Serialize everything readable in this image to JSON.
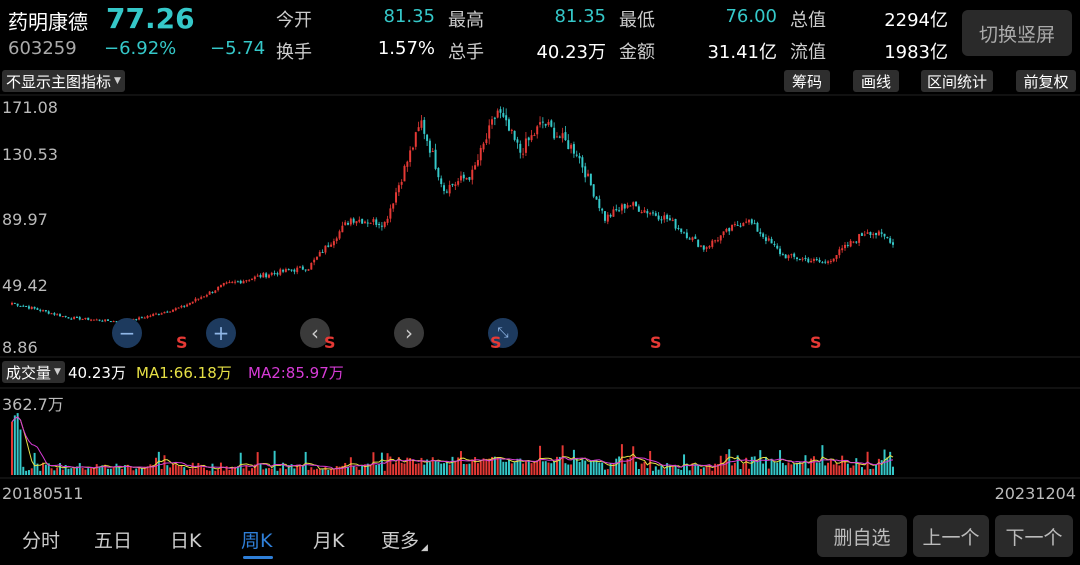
{
  "stock": {
    "name": "药明康德",
    "price": "77.26",
    "code": "603259",
    "change_pct": "−6.92%",
    "change": "−5.74"
  },
  "colors": {
    "up": "#e53935",
    "down": "#35c8c9",
    "ma1": "#e6e045",
    "ma2": "#d63bd6",
    "accent": "#2f7fd8"
  },
  "quote": [
    {
      "label": "今开",
      "value": "81.35",
      "tone": "up"
    },
    {
      "label": "最高",
      "value": "81.35",
      "tone": "up"
    },
    {
      "label": "最低",
      "value": "76.00",
      "tone": "up"
    },
    {
      "label": "总值",
      "value": "2294亿",
      "tone": "plain"
    },
    {
      "label": "换手",
      "value": "1.57%",
      "tone": "plain"
    },
    {
      "label": "总手",
      "value": "40.23万",
      "tone": "plain"
    },
    {
      "label": "金额",
      "value": "31.41亿",
      "tone": "plain"
    },
    {
      "label": "流值",
      "value": "1983亿",
      "tone": "plain"
    }
  ],
  "switch_label": "切换竖屏",
  "indicator_select": "不显示主图指标",
  "tools": [
    "筹码",
    "画线",
    "区间统计",
    "前复权"
  ],
  "price_axis": [
    "171.08",
    "130.53",
    "89.97",
    "49.42",
    "8.86"
  ],
  "signal_label": "S",
  "volume": {
    "selector": "成交量",
    "current": "40.23万",
    "ma1": "MA1:66.18万",
    "ma2": "MA2:85.97万",
    "max_label": "362.7万"
  },
  "dates": {
    "start": "20180511",
    "end": "20231204"
  },
  "tabs": [
    "分时",
    "五日",
    "日K",
    "周K",
    "月K",
    "更多"
  ],
  "active_tab": 3,
  "nav_buttons": [
    "删自选",
    "上一个",
    "下一个"
  ],
  "chart_data": {
    "type": "candlestick",
    "price_range": [
      8.86,
      171.08
    ],
    "volume_range_wan": [
      0,
      362.7
    ],
    "keypoints": [
      {
        "i": 0,
        "price": 38
      },
      {
        "i": 20,
        "price": 28
      },
      {
        "i": 40,
        "price": 25
      },
      {
        "i": 60,
        "price": 35
      },
      {
        "i": 75,
        "price": 50
      },
      {
        "i": 92,
        "price": 58
      },
      {
        "i": 105,
        "price": 62
      },
      {
        "i": 120,
        "price": 95
      },
      {
        "i": 132,
        "price": 92
      },
      {
        "i": 145,
        "price": 160
      },
      {
        "i": 153,
        "price": 115
      },
      {
        "i": 163,
        "price": 125
      },
      {
        "i": 172,
        "price": 168
      },
      {
        "i": 180,
        "price": 140
      },
      {
        "i": 188,
        "price": 160
      },
      {
        "i": 200,
        "price": 140
      },
      {
        "i": 210,
        "price": 95
      },
      {
        "i": 218,
        "price": 105
      },
      {
        "i": 232,
        "price": 95
      },
      {
        "i": 245,
        "price": 75
      },
      {
        "i": 260,
        "price": 95
      },
      {
        "i": 273,
        "price": 70
      },
      {
        "i": 288,
        "price": 65
      },
      {
        "i": 303,
        "price": 87
      },
      {
        "i": 312,
        "price": 80
      }
    ],
    "candle_count": 313
  }
}
